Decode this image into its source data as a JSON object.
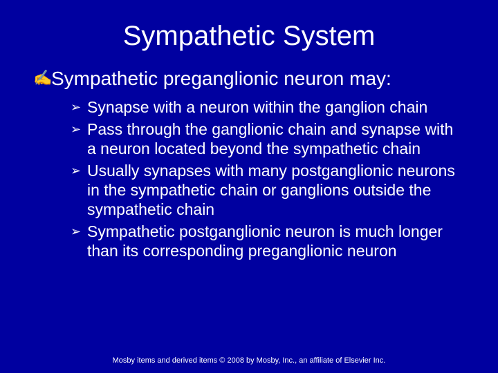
{
  "colors": {
    "background": "#0000a0",
    "text": "#ffffff"
  },
  "title": "Sympathetic System",
  "bullets_main_glyph": "✍",
  "bullets_sub_glyph": "➢",
  "main": {
    "text": "Sympathetic preganglionic neuron may:",
    "subs": [
      "Synapse with a neuron within the ganglion chain",
      "Pass through the ganglionic chain and synapse with a neuron located beyond the sympathetic chain",
      "Usually synapses with many postganglionic neurons in the sympathetic chain or ganglions outside the sympathetic chain",
      "Sympathetic postganglionic neuron is much longer than its corresponding preganglionic neuron"
    ]
  },
  "footer": "Mosby items and derived items © 2008 by Mosby, Inc., an affiliate of Elsevier Inc."
}
